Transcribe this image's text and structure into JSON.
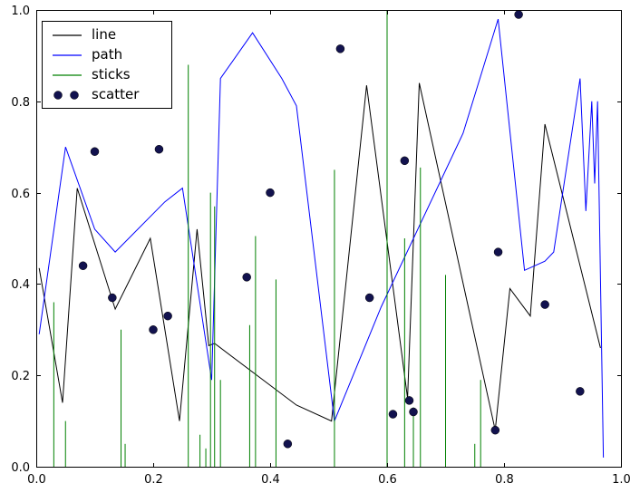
{
  "figure": {
    "background": "#ffffff",
    "frame_color": "#000000"
  },
  "chart_data": {
    "type": "line",
    "title": "",
    "xlabel": "",
    "ylabel": "",
    "xlim": [
      0.0,
      1.0
    ],
    "ylim": [
      0.0,
      1.0
    ],
    "grid": false,
    "legend_position": "upper-left",
    "xticks": [
      0.0,
      0.2,
      0.4,
      0.6,
      0.8,
      1.0
    ],
    "yticks": [
      0.0,
      0.2,
      0.4,
      0.6,
      0.8,
      1.0
    ],
    "xtick_labels": [
      "0.0",
      "0.2",
      "0.4",
      "0.6",
      "0.8",
      "1.0"
    ],
    "ytick_labels": [
      "0.0",
      "0.2",
      "0.4",
      "0.6",
      "0.8",
      "1.0"
    ],
    "series": [
      {
        "name": "line",
        "type": "line",
        "color": "#000000",
        "x": [
          0.005,
          0.045,
          0.07,
          0.135,
          0.195,
          0.245,
          0.275,
          0.295,
          0.305,
          0.445,
          0.505,
          0.565,
          0.635,
          0.655,
          0.785,
          0.81,
          0.845,
          0.87,
          0.965
        ],
        "y": [
          0.435,
          0.14,
          0.61,
          0.345,
          0.5,
          0.1,
          0.52,
          0.265,
          0.27,
          0.135,
          0.1,
          0.835,
          0.15,
          0.84,
          0.08,
          0.39,
          0.33,
          0.75,
          0.26
        ]
      },
      {
        "name": "path",
        "type": "line",
        "color": "#0000ff",
        "x": [
          0.005,
          0.05,
          0.1,
          0.135,
          0.22,
          0.25,
          0.3,
          0.315,
          0.37,
          0.42,
          0.445,
          0.51,
          0.59,
          0.73,
          0.79,
          0.835,
          0.87,
          0.885,
          0.93,
          0.94,
          0.95,
          0.955,
          0.96,
          0.97
        ],
        "y": [
          0.29,
          0.7,
          0.52,
          0.47,
          0.58,
          0.61,
          0.19,
          0.85,
          0.95,
          0.85,
          0.79,
          0.1,
          0.35,
          0.73,
          0.98,
          0.43,
          0.45,
          0.47,
          0.85,
          0.56,
          0.8,
          0.62,
          0.8,
          0.02
        ]
      },
      {
        "name": "sticks",
        "type": "sticks",
        "color": "#008000",
        "x": [
          0.03,
          0.05,
          0.145,
          0.152,
          0.26,
          0.28,
          0.29,
          0.298,
          0.305,
          0.315,
          0.365,
          0.375,
          0.41,
          0.51,
          0.6,
          0.63,
          0.645,
          0.657,
          0.7,
          0.75,
          0.76
        ],
        "y": [
          0.36,
          0.1,
          0.3,
          0.05,
          0.88,
          0.07,
          0.04,
          0.6,
          0.57,
          0.19,
          0.31,
          0.505,
          0.41,
          0.65,
          1.0,
          0.5,
          0.13,
          0.655,
          0.42,
          0.05,
          0.19
        ]
      },
      {
        "name": "scatter",
        "type": "scatter",
        "color": "#12124e",
        "x": [
          0.08,
          0.1,
          0.13,
          0.2,
          0.21,
          0.225,
          0.36,
          0.4,
          0.43,
          0.52,
          0.57,
          0.61,
          0.63,
          0.638,
          0.645,
          0.785,
          0.79,
          0.825,
          0.87,
          0.93
        ],
        "y": [
          0.44,
          0.69,
          0.37,
          0.3,
          0.695,
          0.33,
          0.415,
          0.6,
          0.05,
          0.915,
          0.37,
          0.115,
          0.67,
          0.145,
          0.12,
          0.08,
          0.47,
          0.99,
          0.355,
          0.165
        ]
      }
    ]
  }
}
